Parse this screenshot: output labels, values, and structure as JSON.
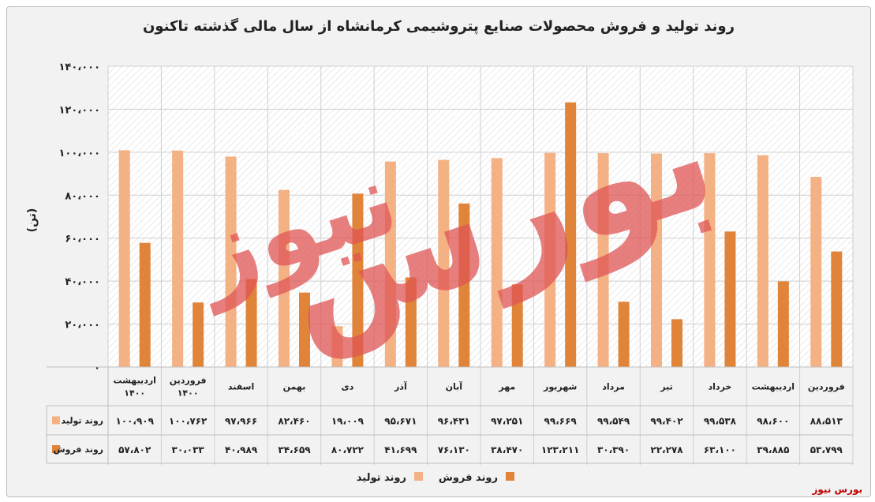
{
  "chart_data": {
    "type": "bar",
    "title": "روند تولید و فروش محصولات صنایع پتروشیمی کرمانشاه از سال مالی گذشته تاکنون",
    "ylabel": "(تن)",
    "ylim": [
      0,
      140000
    ],
    "yticks": [
      "۰",
      "۲۰،۰۰۰",
      "۴۰،۰۰۰",
      "۶۰،۰۰۰",
      "۸۰،۰۰۰",
      "۱۰۰،۰۰۰",
      "۱۲۰،۰۰۰",
      "۱۴۰،۰۰۰"
    ],
    "ytick_values": [
      0,
      20000,
      40000,
      60000,
      80000,
      100000,
      120000,
      140000
    ],
    "categories": [
      [
        "اردیبهشت",
        "۱۴۰۰"
      ],
      [
        "فروردین",
        "۱۴۰۰"
      ],
      [
        "اسفند"
      ],
      [
        "بهمن"
      ],
      [
        "دی"
      ],
      [
        "آذر"
      ],
      [
        "آبان"
      ],
      [
        "مهر"
      ],
      [
        "شهریور"
      ],
      [
        "مرداد"
      ],
      [
        "تیر"
      ],
      [
        "خرداد"
      ],
      [
        "اردیبهشت"
      ],
      [
        "فروردین"
      ]
    ],
    "series": [
      {
        "name": "روند تولید",
        "color": "#f4b183",
        "values": [
          100909,
          100762,
          97966,
          82460,
          19009,
          95671,
          96431,
          97251,
          99669,
          99549,
          99402,
          99538,
          98600,
          88513
        ],
        "labels": [
          "۱۰۰،۹۰۹",
          "۱۰۰،۷۶۲",
          "۹۷،۹۶۶",
          "۸۲،۴۶۰",
          "۱۹،۰۰۹",
          "۹۵،۶۷۱",
          "۹۶،۴۳۱",
          "۹۷،۲۵۱",
          "۹۹،۶۶۹",
          "۹۹،۵۴۹",
          "۹۹،۴۰۲",
          "۹۹،۵۳۸",
          "۹۸،۶۰۰",
          "۸۸،۵۱۳"
        ]
      },
      {
        "name": "روند فروش",
        "color": "#e0843a",
        "values": [
          57802,
          30033,
          40989,
          34659,
          80722,
          41699,
          76130,
          38470,
          123211,
          30390,
          22278,
          63100,
          39885,
          53799
        ],
        "labels": [
          "۵۷،۸۰۲",
          "۳۰،۰۳۳",
          "۴۰،۹۸۹",
          "۳۴،۶۵۹",
          "۸۰،۷۲۲",
          "۴۱،۶۹۹",
          "۷۶،۱۳۰",
          "۳۸،۴۷۰",
          "۱۲۳،۲۱۱",
          "۳۰،۳۹۰",
          "۲۲،۲۷۸",
          "۶۳،۱۰۰",
          "۳۹،۸۸۵",
          "۵۳،۷۹۹"
        ]
      }
    ],
    "legend": "bottom",
    "grid": true
  },
  "watermark": {
    "line1": "بورس",
    "line2": "نیوز"
  },
  "source_text": "بورس نیوز",
  "colors": {
    "background": "#f2f2f2",
    "production": "#f4b183",
    "sales": "#e0843a",
    "watermark": "#e05555"
  }
}
